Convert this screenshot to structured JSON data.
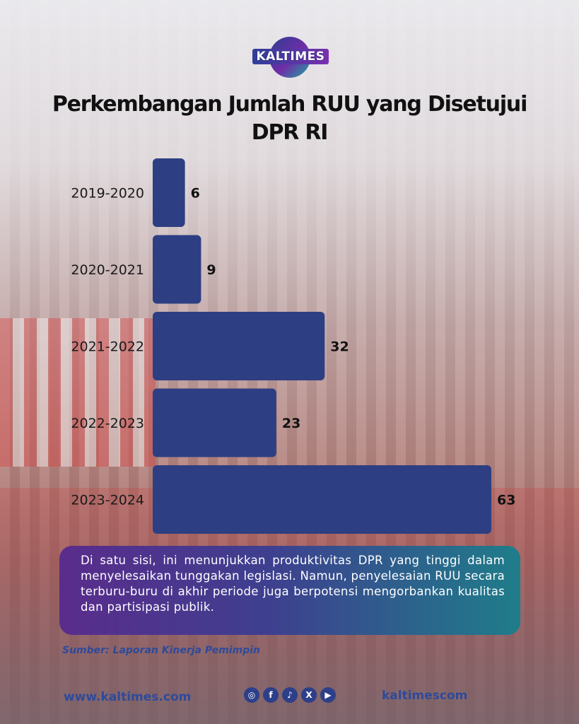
{
  "brand": {
    "logo_text": "KALTIMES"
  },
  "chart_data": {
    "type": "bar",
    "orientation": "horizontal",
    "title": "Perkembangan Jumlah RUU yang Disetujui DPR RI",
    "title_lines": [
      "Perkembangan Jumlah RUU yang Disetujui",
      "DPR RI"
    ],
    "categories": [
      "2019-2020",
      "2020-2021",
      "2021-2022",
      "2022-2023",
      "2023-2024"
    ],
    "values": [
      6,
      9,
      32,
      23,
      63
    ],
    "xlim": [
      0,
      63
    ],
    "grid": false,
    "legend": "none",
    "bar_color": "#2d3f82"
  },
  "callout": {
    "text": "Di satu sisi, ini menunjukkan produktivitas DPR yang tinggi dalam menyelesaikan tunggakan legislasi. Namun, penyelesaian RUU secara terburu-buru di akhir periode juga berpotensi mengorbankan kualitas dan partisipasi publik."
  },
  "source": "Sumber: Laporan Kinerja Pemimpin",
  "footer": {
    "website": "www.kaltimes.com",
    "handle": "kaltimescom",
    "social_icons": [
      "instagram-icon",
      "facebook-icon",
      "tiktok-icon",
      "x-icon",
      "youtube-icon"
    ],
    "social_glyphs": [
      "◎",
      "f",
      "♪",
      "X",
      "▶"
    ]
  },
  "colors": {
    "bar": "#2d3f82",
    "accent_text": "#2e4a9a",
    "callout_start": "#5a2c8c",
    "callout_end": "#1f7d8a"
  }
}
